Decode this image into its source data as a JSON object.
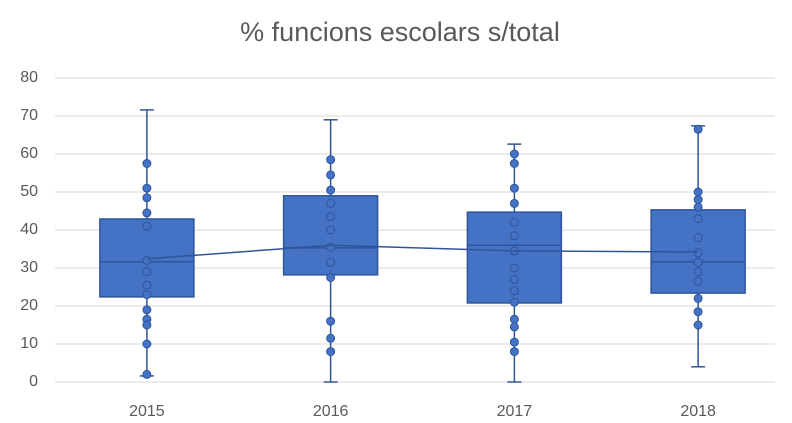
{
  "chart_data": {
    "type": "box",
    "title": "% funcions escolars s/total",
    "categories": [
      "2015",
      "2016",
      "2017",
      "2018"
    ],
    "color": "#4472c4",
    "ylim": [
      0,
      80
    ],
    "yticks": [
      0,
      10,
      20,
      30,
      40,
      50,
      60,
      70,
      80
    ],
    "grid": true,
    "boxes": [
      {
        "min": 1.6,
        "q1": 22.4,
        "median": 31.6,
        "q3": 42.9,
        "max": 71.6,
        "mean": 32.4,
        "points": [
          57.5,
          51,
          48.5,
          44.5,
          41,
          32,
          29,
          25.5,
          23,
          19,
          16.5,
          15,
          10,
          2
        ]
      },
      {
        "min": 0,
        "q1": 28.2,
        "median": 35.3,
        "q3": 49,
        "max": 69,
        "mean": 36,
        "points": [
          58.5,
          54.5,
          50.5,
          47,
          43.5,
          40,
          35.5,
          31.5,
          27.5,
          16,
          11.5,
          8
        ]
      },
      {
        "min": 0,
        "q1": 20.8,
        "median": 36,
        "q3": 44.7,
        "max": 62.6,
        "mean": 34.5,
        "points": [
          60,
          57.5,
          51,
          47,
          42,
          38.5,
          34.5,
          30,
          27,
          24,
          21,
          16.5,
          14.5,
          10.5,
          8
        ]
      },
      {
        "min": 4,
        "q1": 23.4,
        "median": 31.6,
        "q3": 45.3,
        "max": 67.4,
        "mean": 34.2,
        "points": [
          66.5,
          50,
          48,
          46,
          43,
          38,
          34,
          31.5,
          29,
          26.5,
          22,
          18.5,
          15
        ]
      }
    ]
  }
}
